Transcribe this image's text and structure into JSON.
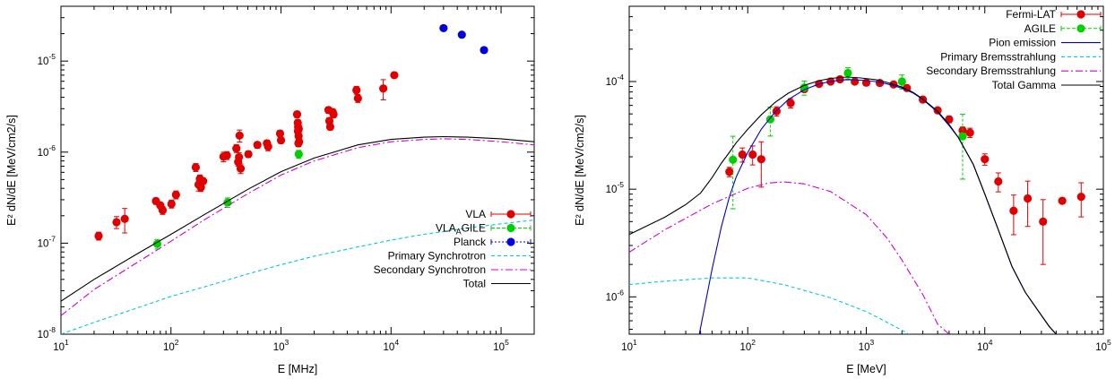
{
  "chart_data": [
    {
      "type": "scatter",
      "xlabel": "E [MHz]",
      "ylabel": "E² dN/dE [MeV/cm2/s]",
      "xscale": "log",
      "yscale": "log",
      "xlim": [
        10,
        200000
      ],
      "ylim": [
        1e-08,
        4e-05
      ],
      "xticks": [
        {
          "value": 10,
          "base": "10",
          "exp": "1"
        },
        {
          "value": 100,
          "base": "10",
          "exp": "2"
        },
        {
          "value": 1000,
          "base": "10",
          "exp": "3"
        },
        {
          "value": 10000,
          "base": "10",
          "exp": "4"
        },
        {
          "value": 100000,
          "base": "10",
          "exp": "5"
        }
      ],
      "yticks": [
        {
          "value": 1e-08,
          "base": "10",
          "exp": "-8"
        },
        {
          "value": 1e-07,
          "base": "10",
          "exp": "-7"
        },
        {
          "value": 1e-06,
          "base": "10",
          "exp": "-6"
        },
        {
          "value": 1e-05,
          "base": "10",
          "exp": "-5"
        }
      ],
      "legend_position": "bottom-right",
      "series": [
        {
          "name": "VLA",
          "kind": "points",
          "color": "#e00000",
          "x": [
            22,
            32,
            38,
            73,
            80,
            84,
            101,
            111,
            168,
            178,
            183,
            187,
            196,
            300,
            322,
            393,
            408,
            415,
            420,
            430,
            505,
            610,
            745,
            764,
            980,
            1000,
            1400,
            1420,
            1425,
            1430,
            1440,
            1445,
            1450,
            1460,
            2700,
            2750,
            2800,
            2950,
            3000,
            4850,
            5000,
            8500,
            10700
          ],
          "y": [
            1.2e-07,
            1.7e-07,
            1.85e-07,
            2.9e-07,
            2.6e-07,
            2.3e-07,
            2.7e-07,
            3.4e-07,
            6.8e-07,
            4.4e-07,
            5.1e-07,
            4.1e-07,
            4.8e-07,
            8.9e-07,
            9.2e-07,
            1.1e-06,
            7.8e-07,
            8.8e-07,
            1.52e-06,
            6.6e-07,
            9.5e-07,
            1.2e-06,
            1.25e-06,
            1.15e-06,
            1.6e-06,
            1.35e-06,
            2.6e-06,
            2.1e-06,
            1.7e-06,
            1.9e-06,
            1.25e-06,
            1.5e-06,
            1.8e-06,
            1.3e-06,
            2.9e-06,
            2.2e-06,
            1.9e-06,
            2.75e-06,
            2.6e-06,
            4.8e-06,
            3.9e-06,
            5e-06,
            7e-06
          ],
          "yerr_frac": [
            0.1,
            0.15,
            0.3,
            0.08,
            0.08,
            0.1,
            0.1,
            0.1,
            0.1,
            0.15,
            0.1,
            0.1,
            0.08,
            0.12,
            0.1,
            0.1,
            0.1,
            0.12,
            0.15,
            0.12,
            0.08,
            0.08,
            0.08,
            0.1,
            0.08,
            0.08,
            0.08,
            0.08,
            0.08,
            0.08,
            0.08,
            0.08,
            0.08,
            0.08,
            0.08,
            0.08,
            0.08,
            0.08,
            0.08,
            0.1,
            0.1,
            0.25,
            0.05
          ]
        },
        {
          "name": "VLA_AGILE",
          "kind": "points",
          "color": "#00d000",
          "x": [
            75,
            327,
            1450
          ],
          "y": [
            9.8e-08,
            2.8e-07,
            9.5e-07
          ],
          "yerr_frac": [
            0.12,
            0.12,
            0.1
          ]
        },
        {
          "name": "Planck",
          "kind": "points",
          "color": "#0000e0",
          "x": [
            30000,
            44000,
            70000
          ],
          "y": [
            2.3e-05,
            1.95e-05,
            1.32e-05
          ],
          "yerr_frac": [
            0,
            0,
            0
          ]
        },
        {
          "name": "Primary Synchrotron",
          "kind": "line",
          "color": "#00c8e0",
          "dash": "4,3",
          "x": [
            10,
            20,
            50,
            100,
            200,
            500,
            1000,
            2000,
            5000,
            10000,
            20000,
            50000,
            100000,
            200000
          ],
          "y": [
            1e-08,
            1.35e-08,
            1.95e-08,
            2.6e-08,
            3.3e-08,
            4.6e-08,
            5.8e-08,
            7.2e-08,
            9.1e-08,
            1.08e-07,
            1.25e-07,
            1.47e-07,
            1.63e-07,
            1.8e-07
          ]
        },
        {
          "name": "Secondary Synchrotron",
          "kind": "line",
          "color": "#d000d0",
          "dash": "8,3,2,3",
          "x": [
            10,
            20,
            50,
            100,
            200,
            500,
            1000,
            2000,
            5000,
            10000,
            20000,
            30000,
            50000,
            100000,
            200000
          ],
          "y": [
            1.6e-08,
            3.1e-08,
            6.2e-08,
            1.05e-07,
            1.8e-07,
            3.5e-07,
            5.6e-07,
            8e-07,
            1.12e-06,
            1.3e-06,
            1.38e-06,
            1.4e-06,
            1.38e-06,
            1.3e-06,
            1.2e-06
          ]
        },
        {
          "name": "Total",
          "kind": "line",
          "color": "#000000",
          "dash": "",
          "x": [
            10,
            20,
            50,
            100,
            200,
            500,
            1000,
            2000,
            5000,
            10000,
            20000,
            30000,
            50000,
            100000,
            200000
          ],
          "y": [
            2.3e-08,
            4e-08,
            7.7e-08,
            1.25e-07,
            2.05e-07,
            3.9e-07,
            6.1e-07,
            8.6e-07,
            1.2e-06,
            1.38e-06,
            1.46e-06,
            1.48e-06,
            1.46e-06,
            1.4e-06,
            1.3e-06
          ]
        }
      ]
    },
    {
      "type": "scatter",
      "xlabel": "E [MeV]",
      "ylabel": "E² dN/dE [MeV/cm2/s]",
      "xscale": "log",
      "yscale": "log",
      "xlim": [
        10,
        100000
      ],
      "ylim": [
        4.5e-07,
        0.0005
      ],
      "xticks": [
        {
          "value": 10,
          "base": "10",
          "exp": "1"
        },
        {
          "value": 100,
          "base": "10",
          "exp": "2"
        },
        {
          "value": 1000,
          "base": "10",
          "exp": "3"
        },
        {
          "value": 10000,
          "base": "10",
          "exp": "4"
        },
        {
          "value": 100000,
          "base": "10",
          "exp": "5"
        }
      ],
      "yticks": [
        {
          "value": 1e-06,
          "base": "10",
          "exp": "-6"
        },
        {
          "value": 1e-05,
          "base": "10",
          "exp": "-5"
        },
        {
          "value": 0.0001,
          "base": "10",
          "exp": "-4"
        }
      ],
      "legend_position": "top-right",
      "series": [
        {
          "name": "Fermi-LAT",
          "kind": "points",
          "color": "#e00000",
          "x": [
            70,
            90,
            110,
            130,
            175,
            230,
            300,
            400,
            500,
            600,
            800,
            1000,
            1300,
            1700,
            2200,
            3000,
            4000,
            5000,
            6500,
            7500,
            10000,
            13000,
            17500,
            23000,
            31000,
            45000,
            65000
          ],
          "y": [
            1.45e-05,
            2.1e-05,
            2.1e-05,
            1.9e-05,
            5.3e-05,
            6.3e-05,
            8.5e-05,
            9.5e-05,
            0.0001,
            0.000105,
            0.0001,
            9.75e-05,
            9.7e-05,
            9.4e-05,
            8.7e-05,
            6.8e-05,
            5.4e-05,
            4.45e-05,
            3.5e-05,
            3.35e-05,
            1.9e-05,
            1.18e-05,
            6.3e-06,
            8.2e-06,
            5e-06,
            7.8e-06,
            8.5e-06
          ],
          "yerr_frac": [
            0.1,
            0.15,
            0.2,
            0.45,
            0.1,
            0.1,
            0.06,
            0.06,
            0.05,
            0.05,
            0.05,
            0.05,
            0.05,
            0.05,
            0.06,
            0.06,
            0.06,
            0.07,
            0.08,
            0.1,
            0.12,
            0.2,
            0.4,
            0.45,
            0.6,
            0.05,
            0.35
          ]
        },
        {
          "name": "AGILE",
          "kind": "points",
          "color": "#00d000",
          "x": [
            75,
            155,
            300,
            700,
            2000,
            6500
          ],
          "y": [
            1.88e-05,
            4.45e-05,
            8.8e-05,
            0.00012,
            0.0001,
            3.1e-05
          ],
          "yerr_frac": [
            0.65,
            0.3,
            0.15,
            0.12,
            0.15,
            0.6
          ]
        },
        {
          "name": "Pion emission",
          "kind": "line",
          "color": "#0000d0",
          "dash": "",
          "x": [
            39,
            50,
            60,
            70,
            80,
            100,
            130,
            170,
            220,
            300,
            400,
            500,
            600,
            700,
            900,
            1200,
            1500,
            2000,
            2500,
            3000,
            4000,
            5000,
            6000,
            8000,
            10000,
            13000,
            17000,
            22000,
            28000,
            35000,
            40000
          ],
          "y": [
            4.5e-07,
            1.8e-06,
            4.5e-06,
            8.5e-06,
            1.3e-05,
            2.2e-05,
            3.6e-05,
            5.2e-05,
            6.8e-05,
            8.4e-05,
            9.5e-05,
            0.0001,
            0.000103,
            0.000104,
            0.000103,
            0.0001,
            9.5e-05,
            8.7e-05,
            7.8e-05,
            6.8e-05,
            5.2e-05,
            3.9e-05,
            3e-05,
            1.7e-05,
            9e-06,
            4.2e-06,
            1.9e-06,
            1.1e-06,
            7.5e-07,
            5.3e-07,
            4.5e-07
          ]
        },
        {
          "name": "Primary Bremsstrahlung",
          "kind": "line",
          "color": "#00c8e0",
          "dash": "4,3",
          "x": [
            10,
            20,
            50,
            100,
            200,
            500,
            1000,
            1500,
            2000,
            2300
          ],
          "y": [
            1.3e-06,
            1.4e-06,
            1.5e-06,
            1.5e-06,
            1.3e-06,
            9.8e-07,
            7.3e-07,
            5.8e-07,
            4.9e-07,
            4.5e-07
          ]
        },
        {
          "name": "Secondary Bremsstrahlung",
          "kind": "line",
          "color": "#d000d0",
          "dash": "8,3,2,3",
          "x": [
            10,
            20,
            50,
            100,
            150,
            200,
            300,
            500,
            1000,
            1500,
            2000,
            3000,
            4000,
            5000
          ],
          "y": [
            2.6e-06,
            4.2e-06,
            7.3e-06,
            1.02e-05,
            1.14e-05,
            1.17e-05,
            1.12e-05,
            9.5e-06,
            5.8e-06,
            3.5e-06,
            2.2e-06,
            1.05e-06,
            5.6e-07,
            4.5e-07
          ]
        },
        {
          "name": "Total Gamma",
          "kind": "line",
          "color": "#000000",
          "dash": "",
          "x": [
            10,
            20,
            30,
            40,
            50,
            60,
            70,
            80,
            100,
            130,
            170,
            220,
            300,
            400,
            500,
            600,
            700,
            900,
            1200,
            1500,
            2000,
            2500,
            3000,
            4000,
            5000,
            6000,
            8000,
            10000,
            13000,
            17000,
            22000,
            28000,
            35000,
            40000
          ],
          "y": [
            3.8e-06,
            5.5e-06,
            7.2e-06,
            9.2e-06,
            1.28e-05,
            1.75e-05,
            2.2e-05,
            2.7e-05,
            3.6e-05,
            4.9e-05,
            6.4e-05,
            7.8e-05,
            9.2e-05,
            0.000102,
            0.000107,
            0.000109,
            0.00011,
            0.000108,
            0.000104,
            9.8e-05,
            8.9e-05,
            7.9e-05,
            6.9e-05,
            5.3e-05,
            4e-05,
            3e-05,
            1.7e-05,
            9e-06,
            4.2e-06,
            1.9e-06,
            1.1e-06,
            7.5e-07,
            5.3e-07,
            4.5e-07
          ]
        }
      ]
    }
  ]
}
